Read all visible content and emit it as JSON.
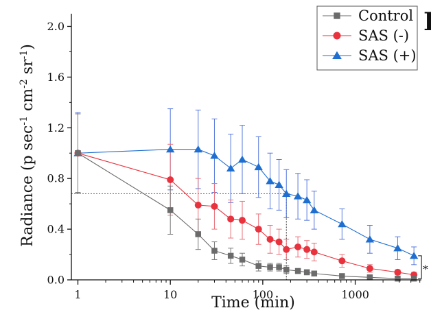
{
  "chart_data": {
    "type": "line",
    "panel_letter": "I",
    "xlabel": "Time (min)",
    "ylabel": {
      "parts": [
        "Radiance (p sec",
        "-1",
        " cm",
        "-2",
        " sr",
        "-1",
        ")"
      ]
    },
    "x_scale": "log",
    "xlim": [
      0.85,
      5200
    ],
    "ylim": [
      0,
      2.1
    ],
    "x_ticks": [
      {
        "value": 1,
        "label": "1"
      },
      {
        "value": 10,
        "label": "10"
      },
      {
        "value": 100,
        "label": "100"
      },
      {
        "value": 1000,
        "label": "1000"
      }
    ],
    "y_ticks": [
      {
        "value": 0.0,
        "label": "0.0"
      },
      {
        "value": 0.4,
        "label": "0.4"
      },
      {
        "value": 0.8,
        "label": "0.8"
      },
      {
        "value": 1.2,
        "label": "1.2"
      },
      {
        "value": 1.6,
        "label": "1.6"
      },
      {
        "value": 2.0,
        "label": "2.0"
      }
    ],
    "reference_line": {
      "y": 0.68,
      "x_end": 180
    },
    "significance": {
      "label": "*",
      "x": 4320,
      "y_low": 0.01,
      "y_high": 0.19
    },
    "legend": {
      "position": "top-right"
    },
    "series": [
      {
        "name": "Control",
        "marker": "square",
        "color": "#6b6b6b",
        "errcolor": "#777777",
        "x": [
          1,
          10,
          20,
          30,
          45,
          60,
          90,
          120,
          150,
          180,
          240,
          300,
          360,
          720,
          1440,
          2880,
          4320
        ],
        "y": [
          1.0,
          0.55,
          0.36,
          0.23,
          0.19,
          0.16,
          0.11,
          0.1,
          0.1,
          0.08,
          0.07,
          0.06,
          0.05,
          0.03,
          0.02,
          0.01,
          0.01
        ],
        "err": [
          0.31,
          0.19,
          0.12,
          0.07,
          0.06,
          0.05,
          0.04,
          0.03,
          0.03,
          0.03,
          0.02,
          0.02,
          0.02,
          0.01,
          0.01,
          0.01,
          0.01
        ]
      },
      {
        "name": "SAS (-)",
        "marker": "circle",
        "color": "#e8333f",
        "errcolor": "#e8707a",
        "x": [
          1,
          10,
          20,
          30,
          45,
          60,
          90,
          120,
          150,
          180,
          240,
          300,
          360,
          720,
          1440,
          2880,
          4320
        ],
        "y": [
          1.0,
          0.79,
          0.59,
          0.58,
          0.48,
          0.47,
          0.4,
          0.32,
          0.3,
          0.24,
          0.26,
          0.24,
          0.22,
          0.15,
          0.09,
          0.06,
          0.04
        ],
        "err": [
          0.31,
          0.28,
          0.21,
          0.18,
          0.15,
          0.15,
          0.12,
          0.11,
          0.1,
          0.08,
          0.08,
          0.07,
          0.07,
          0.05,
          0.03,
          0.02,
          0.02
        ]
      },
      {
        "name": "SAS (+)",
        "marker": "triangle",
        "color": "#1f6fd1",
        "errcolor": "#5577dd",
        "x": [
          1,
          10,
          20,
          30,
          45,
          60,
          90,
          120,
          150,
          180,
          240,
          300,
          360,
          720,
          1440,
          2880,
          4320
        ],
        "y": [
          1.0,
          1.03,
          1.03,
          0.98,
          0.88,
          0.95,
          0.89,
          0.78,
          0.75,
          0.68,
          0.66,
          0.63,
          0.55,
          0.44,
          0.32,
          0.25,
          0.19
        ],
        "err": [
          0.32,
          0.32,
          0.31,
          0.29,
          0.27,
          0.27,
          0.24,
          0.22,
          0.2,
          0.19,
          0.18,
          0.16,
          0.15,
          0.12,
          0.11,
          0.09,
          0.07
        ]
      }
    ]
  }
}
